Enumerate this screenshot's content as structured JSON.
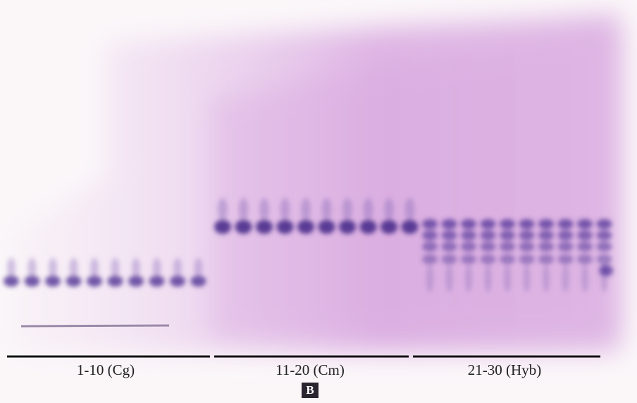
{
  "groups": [
    {
      "label": "1-10 (Cg)"
    },
    {
      "label": "11-20 (Cm)"
    },
    {
      "label": "21-30 (Hyb)"
    }
  ],
  "panel_label": "B"
}
